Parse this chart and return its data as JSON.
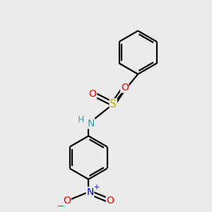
{
  "background_color": "#ebebeb",
  "bond_color": "#000000",
  "atom_colors": {
    "S": "#b8b800",
    "O": "#ff0000",
    "N_amine": "#4499aa",
    "N_nitro": "#0000ee",
    "H": "#4499aa",
    "O_minus": "#ff0000"
  },
  "figsize": [
    3.0,
    3.0
  ],
  "dpi": 100,
  "lw": 1.6
}
